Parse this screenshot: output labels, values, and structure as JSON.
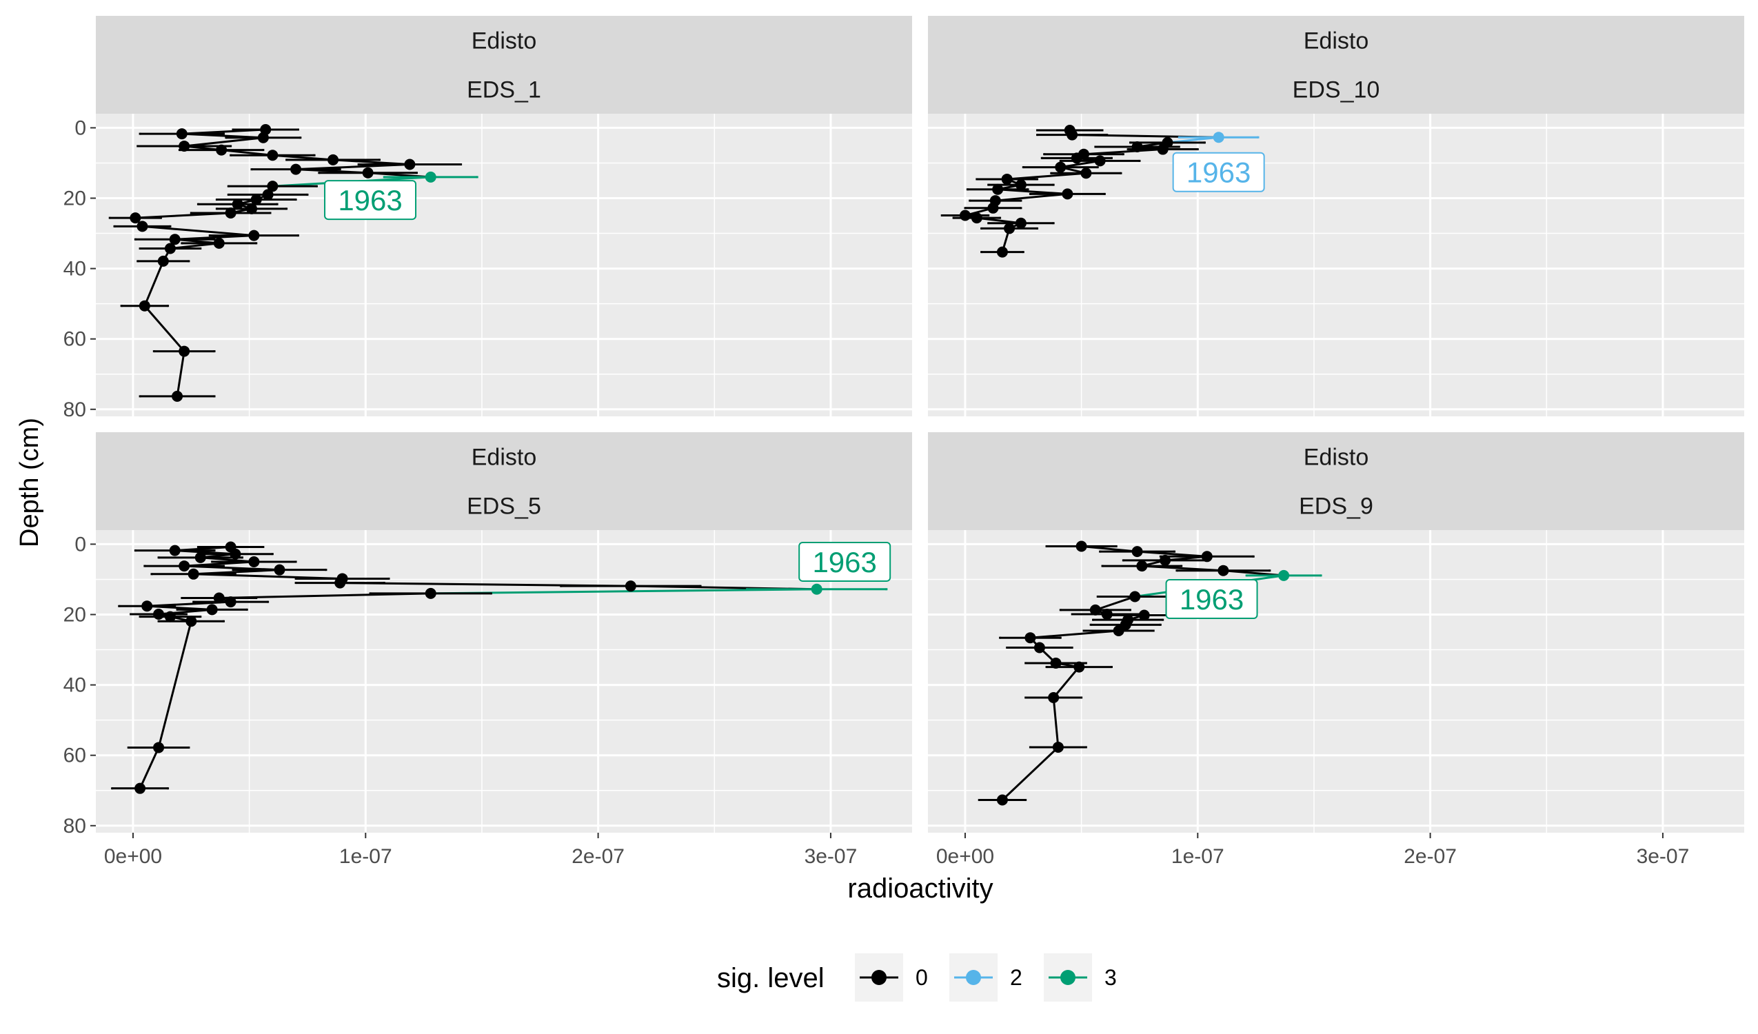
{
  "chart_data": {
    "type": "faceted line with error bars",
    "xlabel": "radioactivity",
    "ylabel": "Depth (cm)",
    "x_range": [
      -1.6e-08,
      3.35e-07
    ],
    "y_range": [
      -4,
      82
    ],
    "y_reversed": true,
    "x_ticks": [
      0,
      1e-07,
      2e-07,
      3e-07
    ],
    "x_tick_labels": [
      "0e+00",
      "1e-07",
      "2e-07",
      "3e-07"
    ],
    "y_ticks": [
      0,
      20,
      40,
      60,
      80
    ],
    "y_tick_labels": [
      "0",
      "20",
      "40",
      "60",
      "80"
    ],
    "grid": true,
    "legend": {
      "title": "sig. level",
      "position": "bottom",
      "entries": [
        {
          "label": "0",
          "color": "#000000"
        },
        {
          "label": "2",
          "color": "#56B4E9"
        },
        {
          "label": "3",
          "color": "#009E73"
        }
      ]
    },
    "colors": {
      "0": "#000000",
      "2": "#56B4E9",
      "3": "#009E73"
    },
    "panels": [
      {
        "strip_top": "Edisto",
        "strip_bottom": "EDS_1",
        "label": {
          "text": "1963",
          "level": "3",
          "x": 1.02e-07,
          "y": 20.5
        },
        "points": [
          {
            "x": 5.7e-08,
            "y": 0.5,
            "err": 1.4e-08,
            "level": "0"
          },
          {
            "x": 2.1e-08,
            "y": 1.7,
            "err": 1.8e-08,
            "level": "0"
          },
          {
            "x": 5.6e-08,
            "y": 2.8,
            "err": 1.6e-08,
            "level": "0"
          },
          {
            "x": 2.2e-08,
            "y": 5.2,
            "err": 2e-08,
            "level": "0"
          },
          {
            "x": 3.8e-08,
            "y": 6.3,
            "err": 1.8e-08,
            "level": "0"
          },
          {
            "x": 6e-08,
            "y": 7.8,
            "err": 1.8e-08,
            "level": "0"
          },
          {
            "x": 8.6e-08,
            "y": 9.1,
            "err": 2e-08,
            "level": "0"
          },
          {
            "x": 1.19e-07,
            "y": 10.4,
            "err": 2.2e-08,
            "level": "0"
          },
          {
            "x": 7e-08,
            "y": 11.8,
            "err": 1.9e-08,
            "level": "0"
          },
          {
            "x": 1.01e-07,
            "y": 12.8,
            "err": 2.1e-08,
            "level": "0"
          },
          {
            "x": 1.28e-07,
            "y": 14.0,
            "err": 2e-08,
            "level": "3"
          },
          {
            "x": 6e-08,
            "y": 16.6,
            "err": 1.9e-08,
            "level": "0"
          },
          {
            "x": 5.8e-08,
            "y": 19.0,
            "err": 1.7e-08,
            "level": "0"
          },
          {
            "x": 5.3e-08,
            "y": 20.4,
            "err": 1.7e-08,
            "level": "0"
          },
          {
            "x": 4.5e-08,
            "y": 21.7,
            "err": 1.7e-08,
            "level": "0"
          },
          {
            "x": 5.1e-08,
            "y": 23.0,
            "err": 1.5e-08,
            "level": "0"
          },
          {
            "x": 4.2e-08,
            "y": 24.2,
            "err": 1.7e-08,
            "level": "0"
          },
          {
            "x": 1e-09,
            "y": 25.6,
            "err": 1.1e-08,
            "level": "0"
          },
          {
            "x": 4e-09,
            "y": 28.0,
            "err": 1.2e-08,
            "level": "0"
          },
          {
            "x": 5.2e-08,
            "y": 30.6,
            "err": 1.9e-08,
            "level": "0"
          },
          {
            "x": 1.8e-08,
            "y": 31.7,
            "err": 1.7e-08,
            "level": "0"
          },
          {
            "x": 3.7e-08,
            "y": 32.8,
            "err": 1.6e-08,
            "level": "0"
          },
          {
            "x": 1.6e-08,
            "y": 34.3,
            "err": 1.3e-08,
            "level": "0"
          },
          {
            "x": 1.3e-08,
            "y": 37.9,
            "err": 1.1e-08,
            "level": "0"
          },
          {
            "x": 5e-09,
            "y": 50.6,
            "err": 1e-08,
            "level": "0"
          },
          {
            "x": 2.2e-08,
            "y": 63.5,
            "err": 1.3e-08,
            "level": "0"
          },
          {
            "x": 1.9e-08,
            "y": 76.3,
            "err": 1.6e-08,
            "level": "0"
          }
        ]
      },
      {
        "strip_top": "Edisto",
        "strip_bottom": "EDS_10",
        "label": {
          "text": "1963",
          "level": "2",
          "x": 1.09e-07,
          "y": 12.6
        },
        "points": [
          {
            "x": 4.5e-08,
            "y": 0.7,
            "err": 1.4e-08,
            "level": "0"
          },
          {
            "x": 4.6e-08,
            "y": 2.0,
            "err": 1.5e-08,
            "level": "0"
          },
          {
            "x": 1.09e-07,
            "y": 2.7,
            "err": 1.7e-08,
            "level": "2"
          },
          {
            "x": 8.7e-08,
            "y": 4.2,
            "err": 1.6e-08,
            "level": "0"
          },
          {
            "x": 7.4e-08,
            "y": 5.4,
            "err": 1.8e-08,
            "level": "0"
          },
          {
            "x": 8.5e-08,
            "y": 6.1,
            "err": 1.5e-08,
            "level": "0"
          },
          {
            "x": 5.1e-08,
            "y": 7.5,
            "err": 1.7e-08,
            "level": "0"
          },
          {
            "x": 4.8e-08,
            "y": 8.6,
            "err": 1.5e-08,
            "level": "0"
          },
          {
            "x": 5.8e-08,
            "y": 9.4,
            "err": 1.7e-08,
            "level": "0"
          },
          {
            "x": 4.1e-08,
            "y": 11.2,
            "err": 1.6e-08,
            "level": "0"
          },
          {
            "x": 5.2e-08,
            "y": 12.9,
            "err": 1.5e-08,
            "level": "0"
          },
          {
            "x": 1.8e-08,
            "y": 14.6,
            "err": 1.3e-08,
            "level": "0"
          },
          {
            "x": 2.4e-08,
            "y": 16.2,
            "err": 1.4e-08,
            "level": "0"
          },
          {
            "x": 1.4e-08,
            "y": 17.5,
            "err": 1.3e-08,
            "level": "0"
          },
          {
            "x": 4.4e-08,
            "y": 18.8,
            "err": 1.6e-08,
            "level": "0"
          },
          {
            "x": 1.3e-08,
            "y": 20.7,
            "err": 1.1e-08,
            "level": "0"
          },
          {
            "x": 1.2e-08,
            "y": 22.8,
            "err": 1.2e-08,
            "level": "0"
          },
          {
            "x": 0.0,
            "y": 24.9,
            "err": 1e-08,
            "level": "0"
          },
          {
            "x": 5e-09,
            "y": 25.6,
            "err": 1e-08,
            "level": "0"
          },
          {
            "x": 2.4e-08,
            "y": 27.1,
            "err": 1.4e-08,
            "level": "0"
          },
          {
            "x": 1.9e-08,
            "y": 28.6,
            "err": 1.2e-08,
            "level": "0"
          },
          {
            "x": 1.6e-08,
            "y": 35.3,
            "err": 9e-09,
            "level": "0"
          }
        ]
      },
      {
        "strip_top": "Edisto",
        "strip_bottom": "EDS_5",
        "label": {
          "text": "1963",
          "level": "3",
          "x": 3.06e-07,
          "y": 5.0
        },
        "points": [
          {
            "x": 4.2e-08,
            "y": 0.8,
            "err": 1.4e-08,
            "level": "0"
          },
          {
            "x": 1.8e-08,
            "y": 1.8,
            "err": 1.7e-08,
            "level": "0"
          },
          {
            "x": 4.4e-08,
            "y": 2.8,
            "err": 1.6e-08,
            "level": "0"
          },
          {
            "x": 2.9e-08,
            "y": 3.8,
            "err": 1.8e-08,
            "level": "0"
          },
          {
            "x": 5.2e-08,
            "y": 5.0,
            "err": 1.8e-08,
            "level": "0"
          },
          {
            "x": 2.2e-08,
            "y": 6.2,
            "err": 1.7e-08,
            "level": "0"
          },
          {
            "x": 6.3e-08,
            "y": 7.3,
            "err": 2e-08,
            "level": "0"
          },
          {
            "x": 2.6e-08,
            "y": 8.5,
            "err": 1.8e-08,
            "level": "0"
          },
          {
            "x": 9e-08,
            "y": 9.8,
            "err": 2e-08,
            "level": "0"
          },
          {
            "x": 8.9e-08,
            "y": 11.0,
            "err": 1.9e-08,
            "level": "0"
          },
          {
            "x": 2.14e-07,
            "y": 11.9,
            "err": 3e-08,
            "level": "0"
          },
          {
            "x": 2.94e-07,
            "y": 12.8,
            "err": 3e-08,
            "level": "3"
          },
          {
            "x": 1.28e-07,
            "y": 14.0,
            "err": 2.6e-08,
            "level": "0"
          },
          {
            "x": 3.7e-08,
            "y": 15.3,
            "err": 1.6e-08,
            "level": "0"
          },
          {
            "x": 4.2e-08,
            "y": 16.4,
            "err": 1.6e-08,
            "level": "0"
          },
          {
            "x": 6e-09,
            "y": 17.6,
            "err": 1.2e-08,
            "level": "0"
          },
          {
            "x": 3.4e-08,
            "y": 18.6,
            "err": 1.5e-08,
            "level": "0"
          },
          {
            "x": 1.1e-08,
            "y": 19.9,
            "err": 1.2e-08,
            "level": "0"
          },
          {
            "x": 1.6e-08,
            "y": 20.6,
            "err": 1.3e-08,
            "level": "0"
          },
          {
            "x": 2.5e-08,
            "y": 21.9,
            "err": 1.4e-08,
            "level": "0"
          },
          {
            "x": 1.1e-08,
            "y": 57.8,
            "err": 1.3e-08,
            "level": "0"
          },
          {
            "x": 3e-09,
            "y": 69.4,
            "err": 1.2e-08,
            "level": "0"
          }
        ]
      },
      {
        "strip_top": "Edisto",
        "strip_bottom": "EDS_9",
        "label": {
          "text": "1963",
          "level": "3",
          "x": 1.06e-07,
          "y": 15.6
        },
        "points": [
          {
            "x": 5e-08,
            "y": 0.6,
            "err": 1.5e-08,
            "level": "0"
          },
          {
            "x": 7.4e-08,
            "y": 2.1,
            "err": 1.6e-08,
            "level": "0"
          },
          {
            "x": 1.04e-07,
            "y": 3.5,
            "err": 2e-08,
            "level": "0"
          },
          {
            "x": 8.6e-08,
            "y": 4.6,
            "err": 1.8e-08,
            "level": "0"
          },
          {
            "x": 7.6e-08,
            "y": 6.2,
            "err": 1.7e-08,
            "level": "0"
          },
          {
            "x": 1.11e-07,
            "y": 7.5,
            "err": 2e-08,
            "level": "0"
          },
          {
            "x": 1.37e-07,
            "y": 8.9,
            "err": 1.6e-08,
            "level": "3"
          },
          {
            "x": 7.3e-08,
            "y": 14.9,
            "err": 1.6e-08,
            "level": "0"
          },
          {
            "x": 5.6e-08,
            "y": 18.7,
            "err": 1.5e-08,
            "level": "0"
          },
          {
            "x": 6.1e-08,
            "y": 19.9,
            "err": 1.5e-08,
            "level": "0"
          },
          {
            "x": 7.7e-08,
            "y": 20.2,
            "err": 1.7e-08,
            "level": "0"
          },
          {
            "x": 7e-08,
            "y": 21.5,
            "err": 1.5e-08,
            "level": "0"
          },
          {
            "x": 6.9e-08,
            "y": 22.9,
            "err": 1.5e-08,
            "level": "0"
          },
          {
            "x": 6.6e-08,
            "y": 24.6,
            "err": 1.5e-08,
            "level": "0"
          },
          {
            "x": 2.8e-08,
            "y": 26.6,
            "err": 1.3e-08,
            "level": "0"
          },
          {
            "x": 3.2e-08,
            "y": 29.4,
            "err": 1.4e-08,
            "level": "0"
          },
          {
            "x": 3.9e-08,
            "y": 33.8,
            "err": 1.3e-08,
            "level": "0"
          },
          {
            "x": 4.9e-08,
            "y": 34.9,
            "err": 1.4e-08,
            "level": "0"
          },
          {
            "x": 3.8e-08,
            "y": 43.6,
            "err": 1.2e-08,
            "level": "0"
          },
          {
            "x": 4e-08,
            "y": 57.7,
            "err": 1.2e-08,
            "level": "0"
          },
          {
            "x": 1.6e-08,
            "y": 72.7,
            "err": 1e-08,
            "level": "0"
          }
        ]
      }
    ]
  }
}
